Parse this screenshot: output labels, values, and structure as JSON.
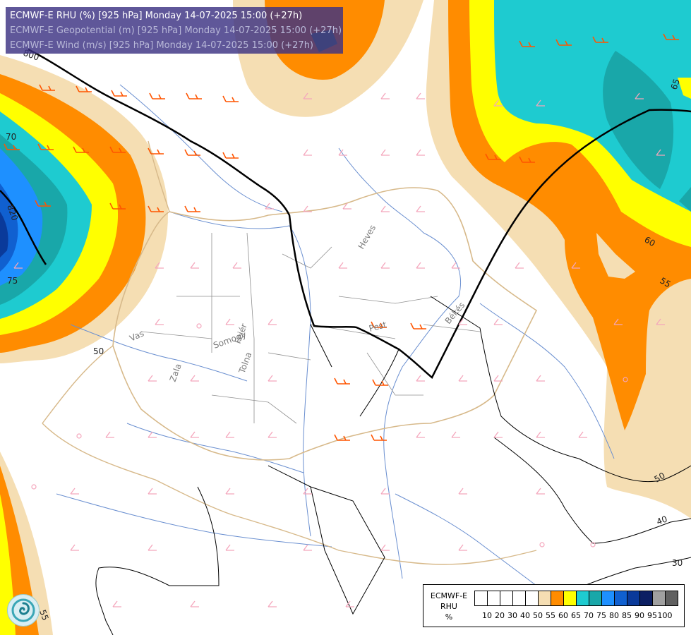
{
  "title": {
    "line1": "ECMWF-E RHU (%) [925 hPa] Monday 14-07-2025 15:00 (+27h)",
    "line2": "ECMWF-E Geopotential (m) [925 hPa] Monday 14-07-2025 15:00 (+27h)",
    "line3": "ECMWF-E Wind (m/s) [925 hPa] Monday 14-07-2025 15:00 (+27h)"
  },
  "legend": {
    "model": "ECMWF-E",
    "field": "RHU",
    "unit": "%",
    "levels": [
      "10",
      "20",
      "30",
      "40",
      "50",
      "55",
      "60",
      "65",
      "70",
      "75",
      "80",
      "85",
      "90",
      "95",
      "100"
    ],
    "colors": [
      "#ffffff",
      "#ffffff",
      "#ffffff",
      "#ffffff",
      "#ffffff",
      "#f5deb3",
      "#ff8c00",
      "#ffff00",
      "#1ecbd0",
      "#19a7a9",
      "#1e90ff",
      "#1060d0",
      "#0a3a9a",
      "#0c1f63",
      "#a0a0a0",
      "#606060"
    ]
  },
  "colors": {
    "rhu_55": "#f5deb3",
    "rhu_60": "#ff8c00",
    "rhu_65": "#ffff00",
    "rhu_70": "#1ecbd0",
    "rhu_75": "#19a7a9",
    "rhu_80": "#1e90ff",
    "rhu_85": "#1060d0",
    "rhu_90": "#0a3a9a",
    "geopotential_line": "#000000",
    "wind_light": "#f4a6bc",
    "wind_strong": "#ff5500",
    "rivers": "#6a8fd0",
    "borders": "#909090"
  },
  "map": {
    "geopotential_labels": [
      "800",
      "820"
    ],
    "rhu_labels": [
      "70",
      "75",
      "50",
      "55",
      "65",
      "60",
      "55",
      "50",
      "40",
      "30"
    ],
    "places": [
      "Vas",
      "Zala",
      "Somogy",
      "Fejér",
      "Tolna",
      "Pest",
      "Heves",
      "Békés"
    ]
  },
  "logo_icon": "ecmwf-swirl-icon"
}
